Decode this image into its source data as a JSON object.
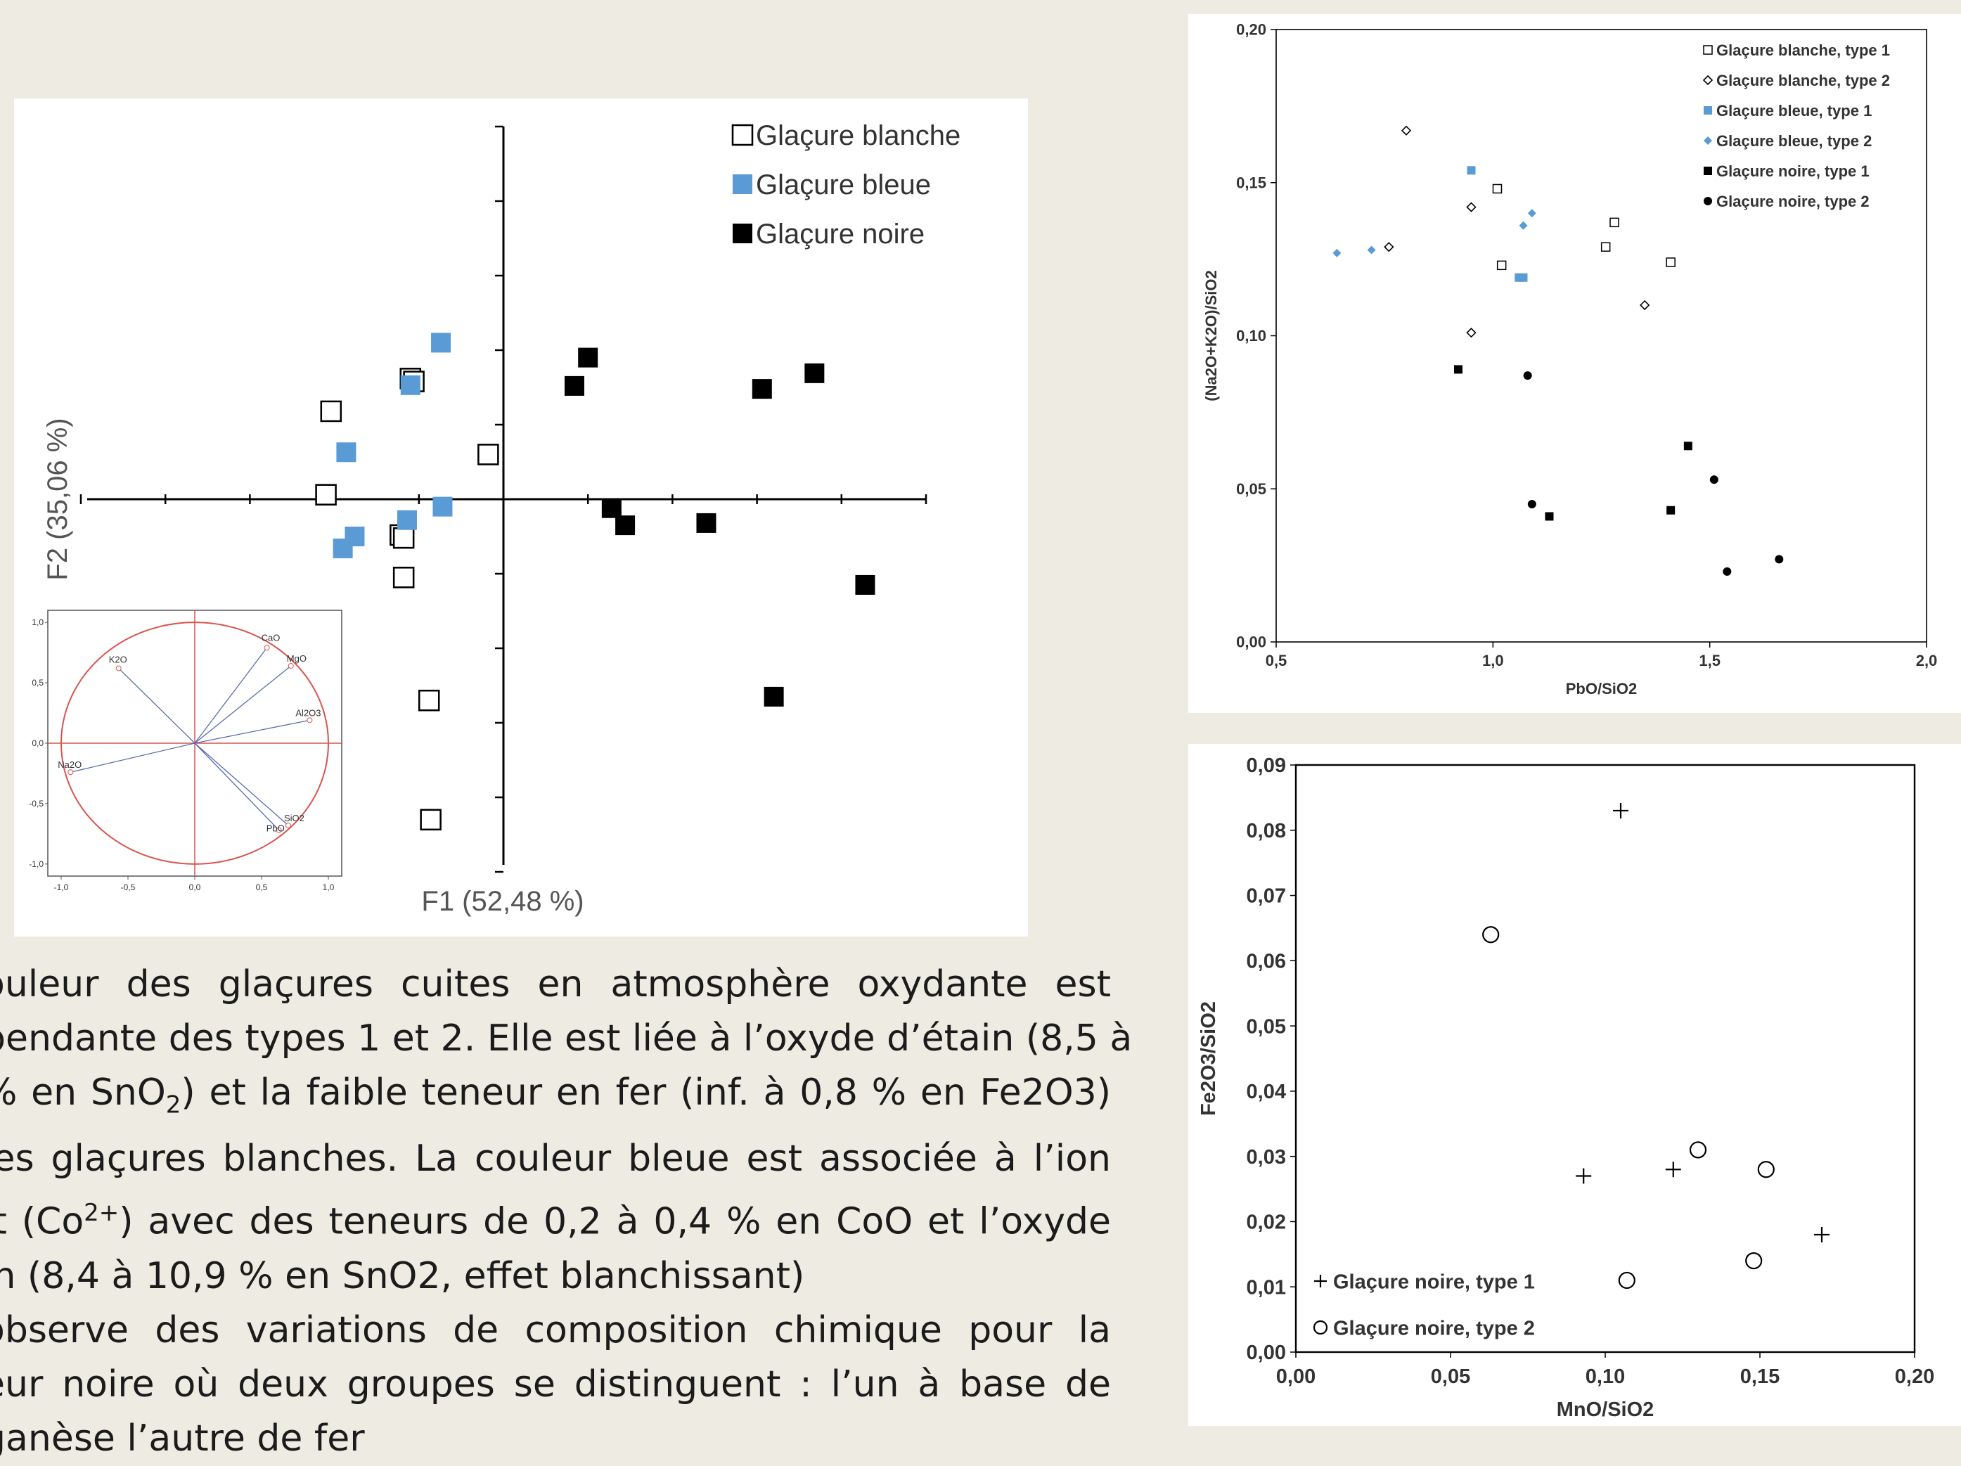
{
  "colors": {
    "background": "#eeebe2",
    "panel": "#ffffff",
    "blue": "#5b9bd5",
    "black": "#000000",
    "circle_red": "#d9534f",
    "vector_blue": "#5a6bb0",
    "pca_axis_label": "#555555"
  },
  "chart_data": [
    {
      "id": "pca",
      "type": "scatter",
      "xlabel": "F1 (52,48 %)",
      "ylabel": "F2 (35,06 %)",
      "legend": {
        "placement": "top-right"
      },
      "series": [
        {
          "name": "Glaçure blanche",
          "marker": "open-square",
          "color": "#000000",
          "points": [
            [
              -1.02,
              1.18
            ],
            [
              -0.55,
              1.62
            ],
            [
              -0.53,
              1.58
            ],
            [
              -0.09,
              0.6
            ],
            [
              -1.05,
              0.06
            ],
            [
              -0.61,
              -0.48
            ],
            [
              -0.59,
              -0.52
            ],
            [
              -0.59,
              -1.05
            ],
            [
              -0.44,
              -2.7
            ],
            [
              -0.43,
              -4.3
            ]
          ]
        },
        {
          "name": "Glaçure bleue",
          "marker": "filled-square",
          "color": "#5b9bd5",
          "points": [
            [
              -0.37,
              2.1
            ],
            [
              -0.55,
              1.53
            ],
            [
              -0.93,
              0.63
            ],
            [
              -0.36,
              -0.1
            ],
            [
              -0.57,
              -0.28
            ],
            [
              -0.88,
              -0.5
            ],
            [
              -0.95,
              -0.66
            ]
          ]
        },
        {
          "name": "Glaçure noire",
          "marker": "filled-square",
          "color": "#000000",
          "points": [
            [
              0.5,
              1.9
            ],
            [
              0.42,
              1.52
            ],
            [
              0.64,
              -0.12
            ],
            [
              0.72,
              -0.35
            ],
            [
              1.2,
              -0.32
            ],
            [
              1.53,
              1.48
            ],
            [
              1.84,
              1.69
            ],
            [
              2.14,
              -1.15
            ],
            [
              1.6,
              -2.65
            ]
          ]
        }
      ],
      "xlim": [
        -2.5,
        2.5
      ],
      "ylim": [
        -5,
        5
      ]
    },
    {
      "id": "correlation-circle",
      "type": "scatter",
      "x_ticks": [
        "-1,0",
        "-0,5",
        "0,0",
        "0,5",
        "1,0"
      ],
      "y_ticks": [
        "1,0",
        "0,5",
        "0,0",
        "-0,5",
        "-1,0"
      ],
      "xlim": [
        -1,
        1
      ],
      "ylim": [
        -1,
        1
      ],
      "vectors": [
        {
          "name": "K2O",
          "x": -0.57,
          "y": 0.62
        },
        {
          "name": "CaO",
          "x": 0.54,
          "y": 0.79
        },
        {
          "name": "MgO",
          "x": 0.72,
          "y": 0.64
        },
        {
          "name": "Al2O3",
          "x": 0.86,
          "y": 0.19
        },
        {
          "name": "Na2O",
          "x": -0.93,
          "y": -0.24
        },
        {
          "name": "SiO2",
          "x": 0.7,
          "y": -0.68
        },
        {
          "name": "PbO",
          "x": 0.63,
          "y": -0.72
        }
      ]
    },
    {
      "id": "pbo-vs-alkali",
      "type": "scatter",
      "xlabel": "PbO/SiO2",
      "ylabel": "(Na2O+K2O)/SiO2",
      "xlim": [
        0.5,
        2.0
      ],
      "ylim": [
        0,
        0.2
      ],
      "x_ticks": [
        "0,5",
        "1,0",
        "1,5",
        "2,0"
      ],
      "y_ticks": [
        "0,00",
        "0,05",
        "0,10",
        "0,15",
        "0,20"
      ],
      "legend": {
        "placement": "top-right"
      },
      "series": [
        {
          "name": "Glaçure blanche, type 1",
          "marker": "open-square",
          "color": "#000000",
          "points": [
            [
              1.01,
              0.148
            ],
            [
              1.28,
              0.137
            ],
            [
              1.26,
              0.129
            ],
            [
              1.41,
              0.124
            ],
            [
              1.02,
              0.123
            ]
          ]
        },
        {
          "name": "Glaçure blanche, type 2",
          "marker": "open-diamond",
          "color": "#000000",
          "points": [
            [
              0.8,
              0.167
            ],
            [
              0.95,
              0.142
            ],
            [
              0.76,
              0.129
            ],
            [
              1.35,
              0.11
            ],
            [
              0.95,
              0.101
            ]
          ]
        },
        {
          "name": "Glaçure bleue, type 1",
          "marker": "filled-square",
          "color": "#5b9bd5",
          "points": [
            [
              0.95,
              0.154
            ],
            [
              1.06,
              0.119
            ],
            [
              1.07,
              0.119
            ]
          ]
        },
        {
          "name": "Glaçure bleue, type 2",
          "marker": "filled-diamond",
          "color": "#5b9bd5",
          "points": [
            [
              0.64,
              0.127
            ],
            [
              0.72,
              0.128
            ],
            [
              1.09,
              0.14
            ],
            [
              1.07,
              0.136
            ]
          ]
        },
        {
          "name": "Glaçure noire, type 1",
          "marker": "filled-square",
          "color": "#000000",
          "points": [
            [
              0.92,
              0.089
            ],
            [
              1.45,
              0.064
            ],
            [
              1.41,
              0.043
            ],
            [
              1.13,
              0.041
            ]
          ]
        },
        {
          "name": "Glaçure noire, type 2",
          "marker": "filled-circle",
          "color": "#000000",
          "points": [
            [
              1.08,
              0.087
            ],
            [
              1.51,
              0.053
            ],
            [
              1.09,
              0.045
            ],
            [
              1.66,
              0.027
            ],
            [
              1.54,
              0.023
            ]
          ]
        }
      ]
    },
    {
      "id": "mno-vs-fe2o3",
      "type": "scatter",
      "xlabel": "MnO/SiO2",
      "ylabel": "Fe2O3/SiO2",
      "xlim": [
        0,
        0.2
      ],
      "ylim": [
        0,
        0.09
      ],
      "x_ticks": [
        "0,00",
        "0,05",
        "0,10",
        "0,15",
        "0,20"
      ],
      "y_ticks": [
        "0,00",
        "0,01",
        "0,02",
        "0,03",
        "0,04",
        "0,05",
        "0,06",
        "0,07",
        "0,08",
        "0,09"
      ],
      "legend": {
        "placement": "bottom-left"
      },
      "series": [
        {
          "name": "Glaçure noire, type 1",
          "marker": "plus",
          "color": "#000000",
          "points": [
            [
              0.105,
              0.083
            ],
            [
              0.093,
              0.027
            ],
            [
              0.122,
              0.028
            ],
            [
              0.17,
              0.018
            ]
          ]
        },
        {
          "name": "Glaçure noire, type 2",
          "marker": "open-circle",
          "color": "#000000",
          "points": [
            [
              0.063,
              0.064
            ],
            [
              0.13,
              0.031
            ],
            [
              0.152,
              0.028
            ],
            [
              0.107,
              0.011
            ],
            [
              0.148,
              0.014
            ]
          ]
        }
      ]
    }
  ],
  "text": {
    "lines": [
      "ouleur des glaçures cuites en atmosphère oxydante est",
      "pendante des types 1 et 2. Elle est liée à l’oxyde d’étain (8,5 à",
      "% en SnO",
      "2",
      ") et la faible teneur en fer (inf. à 0,8 % en Fe2O3)",
      " les glaçures blanches. La couleur bleue est associée à l’ion",
      "lt (Co",
      "2+",
      ") avec des teneurs de 0,2 à 0,4 % en CoO et l’oxyde",
      "in (8,4 à 10,9 % en SnO2, effet blanchissant)",
      "observe des variations de composition chimique pour la",
      "eur noire où deux groupes se distinguent : l’un à base de",
      "ganèse l’autre de fer"
    ]
  }
}
